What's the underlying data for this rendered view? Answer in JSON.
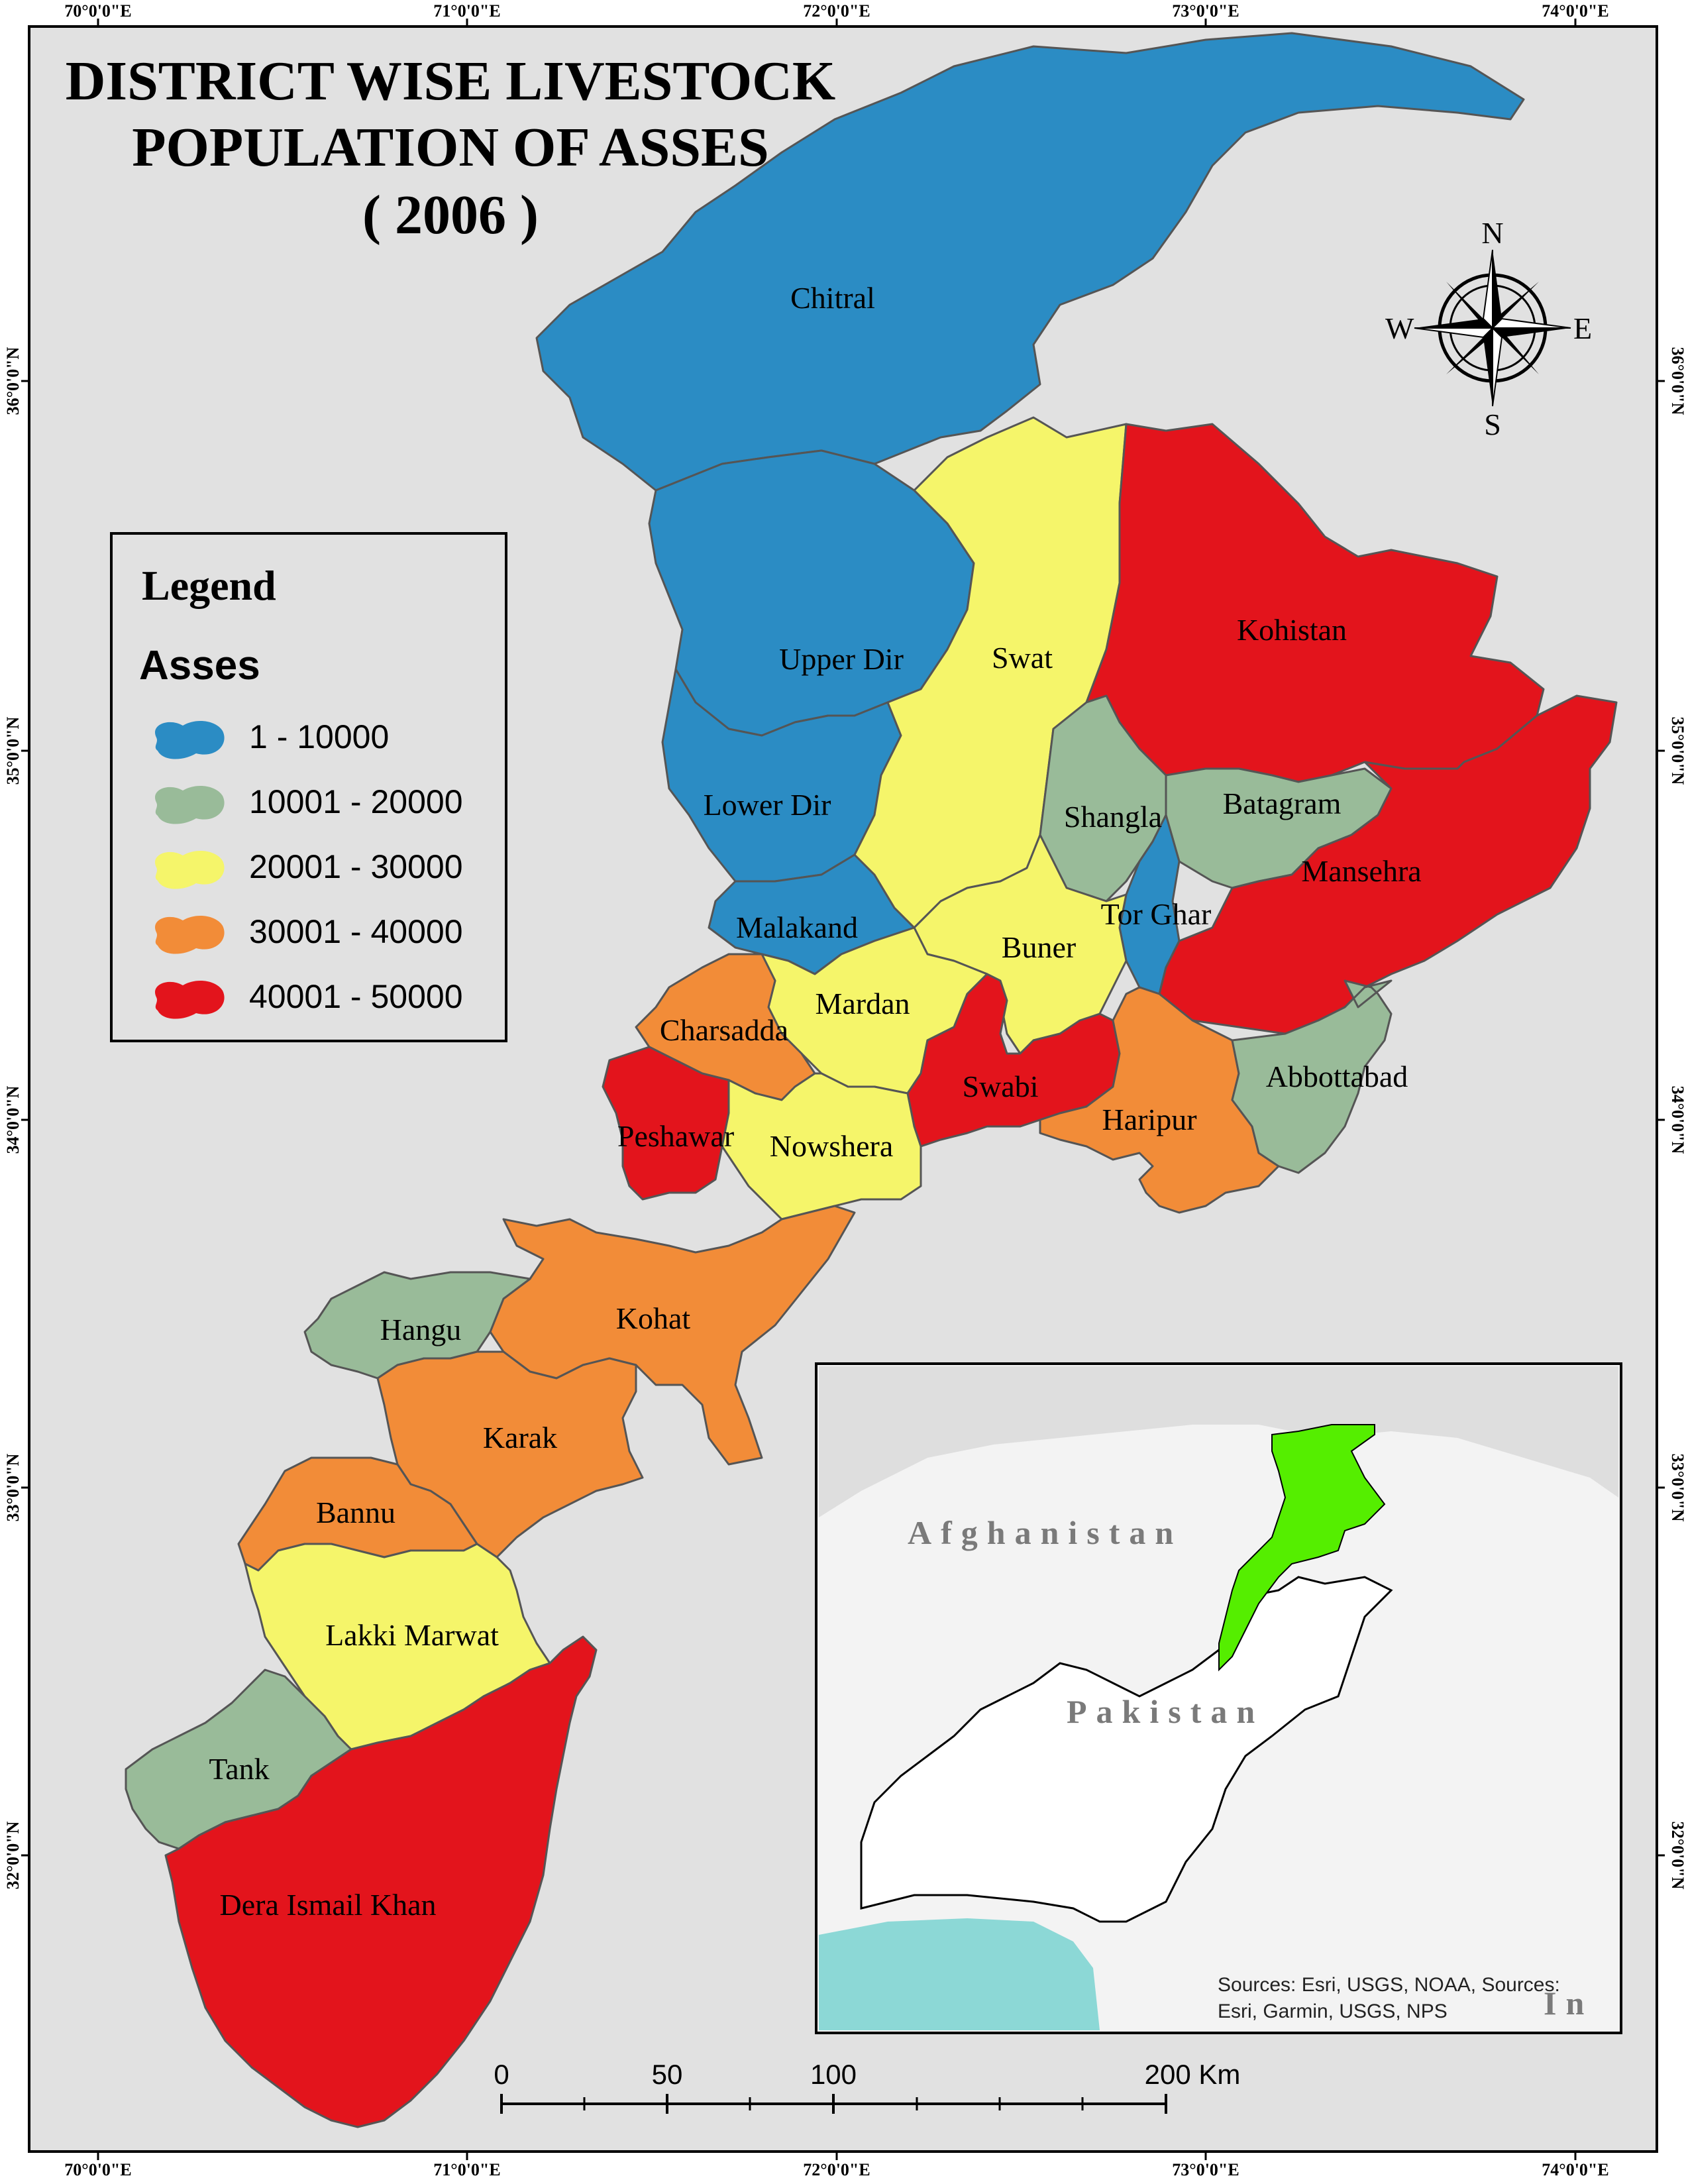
{
  "title": {
    "line1": "DISTRICT WISE LIVESTOCK",
    "line2": "POPULATION OF ASSES",
    "line3": "( 2006 )"
  },
  "graticule": {
    "longitudes": [
      "70°0'0\"E",
      "71°0'0\"E",
      "72°0'0\"E",
      "73°0'0\"E",
      "74°0'0\"E"
    ],
    "latitudes": [
      "36°0'0\"N",
      "35°0'0\"N",
      "34°0'0\"N",
      "33°0'0\"N",
      "32°0'0\"N"
    ]
  },
  "legend": {
    "title": "Legend",
    "subtitle": "Asses",
    "classes": [
      {
        "label": "1 - 10000",
        "color": "#2b8cc4"
      },
      {
        "label": "10001 - 20000",
        "color": "#99bb99"
      },
      {
        "label": "20001 - 30000",
        "color": "#f5f56a"
      },
      {
        "label": "30001 - 40000",
        "color": "#f28c38"
      },
      {
        "label": "40001 - 50000",
        "color": "#e3141c"
      }
    ]
  },
  "districts": [
    {
      "name": "Chitral",
      "class": 0
    },
    {
      "name": "Upper Dir",
      "class": 0
    },
    {
      "name": "Lower Dir",
      "class": 0
    },
    {
      "name": "Malakand",
      "class": 0
    },
    {
      "name": "Swat",
      "class": 2
    },
    {
      "name": "Kohistan",
      "class": 4
    },
    {
      "name": "Shangla",
      "class": 1
    },
    {
      "name": "Batagram",
      "class": 1
    },
    {
      "name": "Tor Ghar",
      "class": 0
    },
    {
      "name": "Mansehra",
      "class": 4
    },
    {
      "name": "Buner",
      "class": 2
    },
    {
      "name": "Mardan",
      "class": 2
    },
    {
      "name": "Charsadda",
      "class": 3
    },
    {
      "name": "Swabi",
      "class": 4
    },
    {
      "name": "Abbottabad",
      "class": 1
    },
    {
      "name": "Haripur",
      "class": 3
    },
    {
      "name": "Peshawar",
      "class": 4
    },
    {
      "name": "Nowshera",
      "class": 2
    },
    {
      "name": "Kohat",
      "class": 3
    },
    {
      "name": "Hangu",
      "class": 1
    },
    {
      "name": "Karak",
      "class": 3
    },
    {
      "name": "Bannu",
      "class": 3
    },
    {
      "name": "Lakki Marwat",
      "class": 2
    },
    {
      "name": "Tank",
      "class": 1
    },
    {
      "name": "Dera Ismail Khan",
      "class": 4
    }
  ],
  "compass": {
    "n": "N",
    "s": "S",
    "e": "E",
    "w": "W"
  },
  "scale_bar": {
    "ticks": [
      "0",
      "50",
      "100",
      "200 Km"
    ]
  },
  "inset": {
    "labels": [
      "Afghanistan",
      "Pakistan",
      "In"
    ],
    "highlight_color": "#55ee00",
    "sources_line1": "Sources: Esri, USGS, NOAA, Sources:",
    "sources_line2": "Esri, Garmin, USGS, NPS"
  }
}
